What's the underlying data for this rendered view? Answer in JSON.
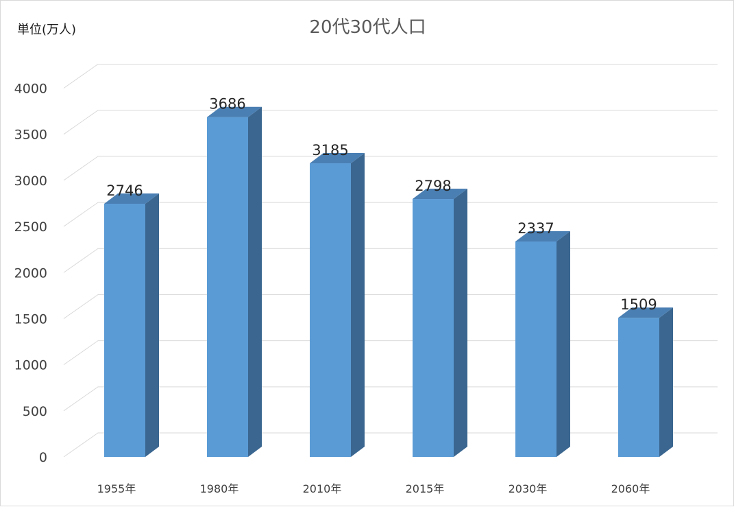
{
  "chart_data": {
    "type": "bar",
    "title": "20代30代人口",
    "unit_label": "単位(万人)",
    "categories": [
      "1955年",
      "1980年",
      "2010年",
      "2015年",
      "2030年",
      "2060年"
    ],
    "values": [
      2746,
      3686,
      3185,
      2798,
      2337,
      1509
    ],
    "ylim": [
      0,
      4000
    ],
    "yticks": [
      0,
      500,
      1000,
      1500,
      2000,
      2500,
      3000,
      3500,
      4000
    ],
    "grid": true,
    "legend": "none",
    "colors": {
      "bar_front": "#5b9bd5",
      "bar_side": "#3a6690",
      "bar_top": "#4a7fb3",
      "grid": "#d9d9d9"
    }
  }
}
